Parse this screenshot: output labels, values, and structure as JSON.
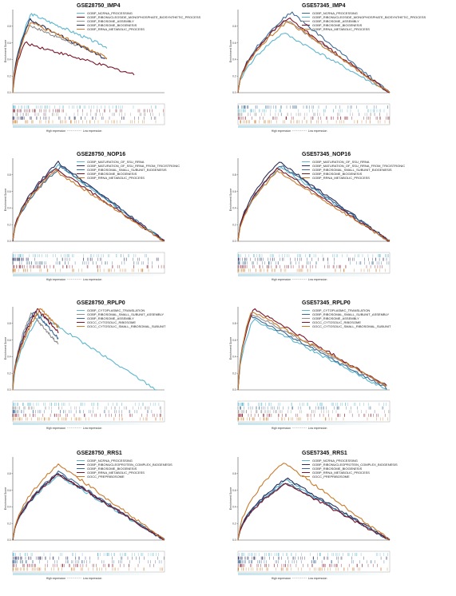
{
  "colors": {
    "light_blue": "#5bb6cf",
    "steel_blue": "#3a6a96",
    "dark_red": "#7a1427",
    "navy": "#2b2e5c",
    "orange": "#c97a2b",
    "gray": "#8f8f8f"
  },
  "axis": {
    "ylabel": "Enrichment Score",
    "xlabel_left": "High expression",
    "xlabel_right": "Low expression"
  },
  "chart_data": [
    {
      "type": "line",
      "title": "GSE28750_IMP4",
      "ylabel": "Enrichment Score",
      "xlabel": "High expression ↔ Low expression",
      "series": [
        {
          "name": "GOBP_NCRNA_PROCESSING",
          "color": "#5bb6cf",
          "peak_x": 0.12,
          "peak_y": 0.95,
          "end_y": 0.55,
          "end_x": 0.62
        },
        {
          "name": "GOBP_RIBONUCLEOSIDE_MONOPHOSPHATE_BIOSYNTHETIC_PROCESS",
          "color": "#7a1427",
          "peak_x": 0.08,
          "peak_y": 0.6,
          "end_y": 0.22,
          "end_x": 0.8
        },
        {
          "name": "GOBP_RIBOSOME_ASSEMBLY",
          "color": "#8f8f8f",
          "peak_x": 0.1,
          "peak_y": 0.82,
          "end_y": 0.45,
          "end_x": 0.58
        },
        {
          "name": "GOBP_RIBOSOME_BIOGENESIS",
          "color": "#2b2e5c",
          "peak_x": 0.11,
          "peak_y": 0.88,
          "end_y": 0.4,
          "end_x": 0.62
        },
        {
          "name": "GOBP_RRNA_METABOLIC_PROCESS",
          "color": "#c97a2b",
          "peak_x": 0.12,
          "peak_y": 0.85,
          "end_y": 0.42,
          "end_x": 0.62
        }
      ],
      "legend_position": "top-right"
    },
    {
      "type": "line",
      "title": "GSE57345_IMP4",
      "ylabel": "Enrichment Score",
      "xlabel": "High expression ↔ Low expression",
      "series": [
        {
          "name": "GOBP_NCRNA_PROCESSING",
          "color": "#3a6a96",
          "peak_x": 0.35,
          "peak_y": 0.97,
          "end_y": 0.0,
          "end_x": 1.0
        },
        {
          "name": "GOBP_RIBONUCLEOSIDE_MONOPHOSPHATE_BIOSYNTHETIC_PROCESS",
          "color": "#5bb6cf",
          "peak_x": 0.3,
          "peak_y": 0.72,
          "end_y": 0.0,
          "end_x": 1.0
        },
        {
          "name": "GOBP_RIBOSOME_ASSEMBLY",
          "color": "#8f8f8f",
          "peak_x": 0.32,
          "peak_y": 0.88,
          "end_y": 0.0,
          "end_x": 1.0
        },
        {
          "name": "GOBP_RIBOSOME_BIOGENESIS",
          "color": "#7a1427",
          "peak_x": 0.33,
          "peak_y": 0.9,
          "end_y": 0.0,
          "end_x": 1.0
        },
        {
          "name": "GOBP_RRNA_METABOLIC_PROCESS",
          "color": "#c97a2b",
          "peak_x": 0.33,
          "peak_y": 0.86,
          "end_y": 0.0,
          "end_x": 1.0
        }
      ],
      "legend_position": "top-right"
    },
    {
      "type": "line",
      "title": "GSE28750_NOP16",
      "ylabel": "Enrichment Score",
      "xlabel": "High expression ↔ Low expression",
      "series": [
        {
          "name": "GOBP_MATURATION_OF_SSU_RRNA",
          "color": "#5bb6cf",
          "peak_x": 0.3,
          "peak_y": 0.92,
          "end_y": 0.0,
          "end_x": 1.0
        },
        {
          "name": "GOBP_MATURATION_OF_SSU_RRNA_FROM_TRICISTRONIC",
          "color": "#2b2e5c",
          "peak_x": 0.3,
          "peak_y": 0.95,
          "end_y": 0.0,
          "end_x": 1.0
        },
        {
          "name": "GOBP_RIBOSOMAL_SMALL_SUBUNIT_BIOGENESIS",
          "color": "#3a6a96",
          "peak_x": 0.32,
          "peak_y": 0.9,
          "end_y": 0.0,
          "end_x": 1.0
        },
        {
          "name": "GOBP_RIBOSOME_BIOGENESIS",
          "color": "#7a1427",
          "peak_x": 0.28,
          "peak_y": 0.88,
          "end_y": 0.0,
          "end_x": 1.0
        },
        {
          "name": "GOBP_RRNA_METABOLIC_PROCESS",
          "color": "#c97a2b",
          "peak_x": 0.28,
          "peak_y": 0.85,
          "end_y": 0.0,
          "end_x": 1.0
        }
      ],
      "legend_position": "top-right"
    },
    {
      "type": "line",
      "title": "GSE57345_NOP16",
      "ylabel": "Enrichment Score",
      "xlabel": "High expression ↔ Low expression",
      "series": [
        {
          "name": "GOBP_MATURATION_OF_SSU_RRNA",
          "color": "#5bb6cf",
          "peak_x": 0.28,
          "peak_y": 0.9,
          "end_y": 0.0,
          "end_x": 1.0
        },
        {
          "name": "GOBP_MATURATION_OF_SSU_RRNA_FROM_TRICISTRONIC",
          "color": "#2b2e5c",
          "peak_x": 0.27,
          "peak_y": 0.96,
          "end_y": 0.0,
          "end_x": 1.0
        },
        {
          "name": "GOBP_RIBOSOMAL_SMALL_SUBUNIT_BIOGENESIS",
          "color": "#3a6a96",
          "peak_x": 0.28,
          "peak_y": 0.92,
          "end_y": 0.0,
          "end_x": 1.0
        },
        {
          "name": "GOBP_RIBOSOME_BIOGENESIS",
          "color": "#7a1427",
          "peak_x": 0.26,
          "peak_y": 0.88,
          "end_y": 0.0,
          "end_x": 1.0
        },
        {
          "name": "GOBP_RRNA_METABOLIC_PROCESS",
          "color": "#c97a2b",
          "peak_x": 0.26,
          "peak_y": 0.84,
          "end_y": 0.0,
          "end_x": 1.0
        }
      ],
      "legend_position": "top-right"
    },
    {
      "type": "line",
      "title": "GSE28750_RPLP0",
      "ylabel": "Enrichment Score",
      "xlabel": "High expression ↔ Low expression",
      "series": [
        {
          "name": "GOBP_CYTOPLASMIC_TRANSLATION",
          "color": "#5bb6cf",
          "peak_x": 0.18,
          "peak_y": 0.9,
          "end_y": 0.0,
          "end_x": 0.95
        },
        {
          "name": "GOBP_RIBOSOMAL_SMALL_SUBUNIT_ASSEMBLY",
          "color": "#8f8f8f",
          "peak_x": 0.12,
          "peak_y": 0.92,
          "end_y": 0.55,
          "end_x": 0.3
        },
        {
          "name": "GOBP_RIBOSOME_ASSEMBLY",
          "color": "#3a6a96",
          "peak_x": 0.14,
          "peak_y": 0.95,
          "end_y": 0.62,
          "end_x": 0.3
        },
        {
          "name": "GOCC_CYTOSOLIC_RIBOSOME",
          "color": "#7a1427",
          "peak_x": 0.16,
          "peak_y": 0.97,
          "end_y": 0.7,
          "end_x": 0.3
        },
        {
          "name": "GOCC_CYTOSOLIC_SMALL_RIBOSOMAL_SUBUNIT",
          "color": "#c97a2b",
          "peak_x": 0.18,
          "peak_y": 0.98,
          "end_y": 0.75,
          "end_x": 0.3
        }
      ],
      "legend_position": "top-right"
    },
    {
      "type": "line",
      "title": "GSE57345_RPLP0",
      "ylabel": "Enrichment Score",
      "xlabel": "High expression ↔ Low expression",
      "series": [
        {
          "name": "GOBP_CYTOPLASMIC_TRANSLATION",
          "color": "#5bb6cf",
          "peak_x": 0.1,
          "peak_y": 0.85,
          "end_y": 0.0,
          "end_x": 0.98
        },
        {
          "name": "GOBP_RIBOSOMAL_SMALL_SUBUNIT_ASSEMBLY",
          "color": "#3a6a96",
          "peak_x": 0.08,
          "peak_y": 0.9,
          "end_y": 0.02,
          "end_x": 0.98
        },
        {
          "name": "GOBP_RIBOSOME_ASSEMBLY",
          "color": "#8f8f8f",
          "peak_x": 0.09,
          "peak_y": 0.92,
          "end_y": 0.05,
          "end_x": 0.98
        },
        {
          "name": "GOCC_CYTOSOLIC_RIBOSOME",
          "color": "#7a1427",
          "peak_x": 0.1,
          "peak_y": 0.98,
          "end_y": 0.05,
          "end_x": 0.98
        },
        {
          "name": "GOCC_CYTOSOLIC_SMALL_RIBOSOMAL_SUBUNIT",
          "color": "#c97a2b",
          "peak_x": 0.09,
          "peak_y": 0.95,
          "end_y": 0.04,
          "end_x": 0.98
        }
      ],
      "legend_position": "top-right"
    },
    {
      "type": "line",
      "title": "GSE28750_RRS1",
      "ylabel": "Enrichment Score",
      "xlabel": "High expression ↔ Low expression",
      "series": [
        {
          "name": "GOBP_NCRNA_PROCESSING",
          "color": "#5bb6cf",
          "peak_x": 0.3,
          "peak_y": 0.78,
          "end_y": 0.0,
          "end_x": 1.0
        },
        {
          "name": "GOBP_RIBONUCLEOPROTEIN_COMPLEX_BIOGENESIS",
          "color": "#2b2e5c",
          "peak_x": 0.3,
          "peak_y": 0.8,
          "end_y": 0.0,
          "end_x": 1.0
        },
        {
          "name": "GOBP_RIBOSOME_BIOGENESIS",
          "color": "#3a6a96",
          "peak_x": 0.3,
          "peak_y": 0.82,
          "end_y": 0.0,
          "end_x": 1.0
        },
        {
          "name": "GOBP_RRNA_METABOLIC_PROCESS",
          "color": "#7a1427",
          "peak_x": 0.3,
          "peak_y": 0.8,
          "end_y": 0.0,
          "end_x": 1.0
        },
        {
          "name": "GOCC_PREPRIBOSOME",
          "color": "#c97a2b",
          "peak_x": 0.3,
          "peak_y": 0.92,
          "end_y": 0.0,
          "end_x": 1.0
        }
      ],
      "legend_position": "top-right"
    },
    {
      "type": "line",
      "title": "GSE57345_RRS1",
      "ylabel": "Enrichment Score",
      "xlabel": "High expression ↔ Low expression",
      "series": [
        {
          "name": "GOBP_NCRNA_PROCESSING",
          "color": "#5bb6cf",
          "peak_x": 0.32,
          "peak_y": 0.72,
          "end_y": 0.0,
          "end_x": 1.0
        },
        {
          "name": "GOBP_RIBONUCLEOPROTEIN_COMPLEX_BIOGENESIS",
          "color": "#2b2e5c",
          "peak_x": 0.32,
          "peak_y": 0.74,
          "end_y": 0.0,
          "end_x": 1.0
        },
        {
          "name": "GOBP_RIBOSOME_BIOGENESIS",
          "color": "#3a6a96",
          "peak_x": 0.32,
          "peak_y": 0.7,
          "end_y": 0.0,
          "end_x": 1.0
        },
        {
          "name": "GOBP_RRNA_METABOLIC_PROCESS",
          "color": "#7a1427",
          "peak_x": 0.32,
          "peak_y": 0.68,
          "end_y": 0.0,
          "end_x": 1.0
        },
        {
          "name": "GOCC_PREPRIBOSOME",
          "color": "#c97a2b",
          "peak_x": 0.3,
          "peak_y": 0.94,
          "end_y": 0.0,
          "end_x": 1.0
        }
      ],
      "legend_position": "top-right"
    }
  ]
}
